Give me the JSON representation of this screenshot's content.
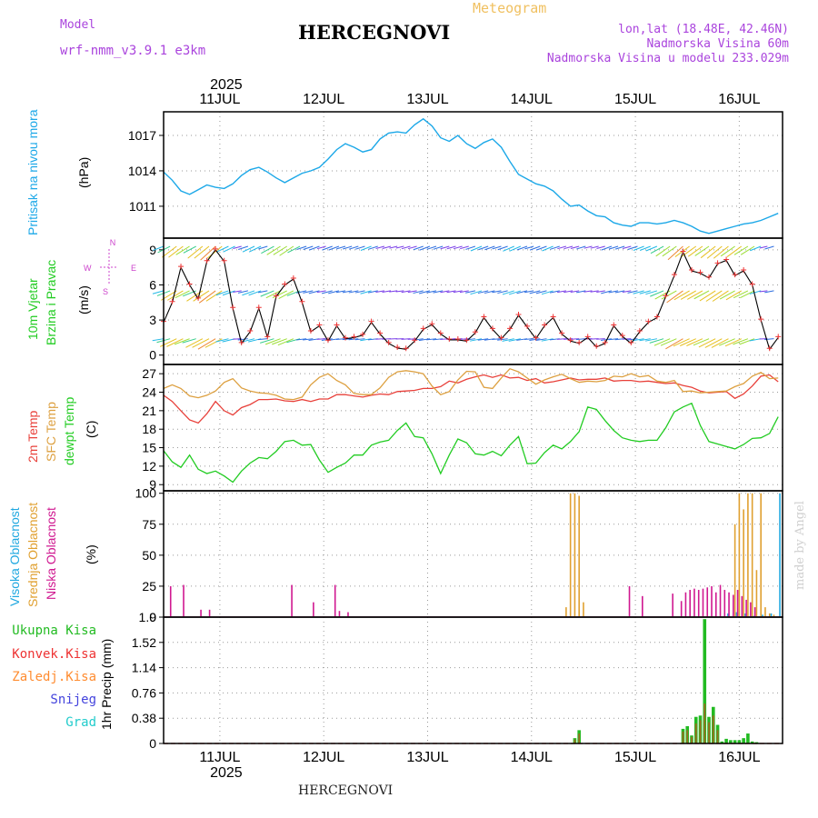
{
  "header": {
    "model_label": "Model",
    "model_name": "wrf-nmm_v3.9.1 e3km",
    "meteogram_label": "Meteogram",
    "station": "HERCEGNOVI",
    "lonlat": "lon,lat (18.48E, 42.46N)",
    "altitude": "Nadmorska Visina 60m",
    "model_altitude": "Nadmorska Visina u modelu 233.029m"
  },
  "footer": {
    "station": "HERCEGNOVI",
    "watermark": "made by Angel"
  },
  "colors": {
    "pressure": "#1ca8e8",
    "temp2m": "#e8403a",
    "sfc": "#dda040",
    "dewpt": "#22cc22",
    "high_cloud": "#20a8e0",
    "mid_cloud": "#e0a030",
    "low_cloud": "#d01890",
    "total_precip": "#22bb22",
    "conv_precip": "#ee3333",
    "strat_precip": "#ff8c30",
    "snow": "#4444dd",
    "hail": "#22cccc",
    "wind_label": "#cc44cc",
    "model": "#aa44dd"
  },
  "time_axis": {
    "year": "2025",
    "day_labels": [
      "11JUL",
      "12JUL",
      "13JUL",
      "14JUL",
      "15JUL",
      "16JUL"
    ]
  },
  "chart_data": [
    {
      "type": "line",
      "panel": "pressure",
      "ylabel_left": "Pritisak na nivou mora",
      "ylabel_unit": "(hPa)",
      "ylim": [
        1008.3,
        1019.0
      ],
      "yticks": [
        "1017",
        "1014",
        "1011"
      ],
      "ytick_values": [
        1017,
        1014,
        1011
      ],
      "x_hours": [
        0,
        2,
        4,
        6,
        8,
        10,
        12,
        14,
        16,
        18,
        20,
        22,
        24,
        26,
        28,
        30,
        32,
        34,
        36,
        38,
        40,
        42,
        44,
        46,
        48,
        50,
        52,
        54,
        56,
        58,
        60,
        62,
        64,
        66,
        68,
        70,
        72,
        74,
        76,
        78,
        80,
        82,
        84,
        86,
        88,
        90,
        92,
        94,
        96,
        98,
        100,
        102,
        104,
        106,
        108,
        110,
        112,
        114,
        116,
        118,
        120,
        122,
        124,
        126,
        128,
        130,
        132,
        134,
        136,
        138,
        140,
        142
      ],
      "values": [
        1013.9,
        1013.2,
        1012.3,
        1012.0,
        1012.4,
        1012.8,
        1012.6,
        1012.5,
        1012.9,
        1013.6,
        1014.1,
        1014.3,
        1013.9,
        1013.4,
        1013.0,
        1013.4,
        1013.8,
        1014.0,
        1014.3,
        1015.0,
        1015.8,
        1016.3,
        1016.0,
        1015.6,
        1015.8,
        1016.7,
        1017.2,
        1017.3,
        1017.2,
        1017.9,
        1018.4,
        1017.8,
        1016.8,
        1016.5,
        1017.0,
        1016.3,
        1015.9,
        1016.4,
        1016.7,
        1016.0,
        1014.8,
        1013.7,
        1013.3,
        1012.9,
        1012.7,
        1012.3,
        1011.6,
        1011.0,
        1011.1,
        1010.6,
        1010.2,
        1010.1,
        1009.6,
        1009.4,
        1009.3,
        1009.6,
        1009.6,
        1009.5,
        1009.6,
        1009.8,
        1009.6,
        1009.3,
        1008.9,
        1008.7,
        1008.9,
        1009.1,
        1009.3,
        1009.5,
        1009.6,
        1009.8,
        1010.1,
        1010.4
      ]
    },
    {
      "type": "line",
      "panel": "wind",
      "ylabel_left": "10m Vjetar",
      "ylabel_left2": "Brzina i Pravac",
      "ylabel_unit": "(m/s)",
      "compass": {
        "n": "N",
        "s": "S",
        "e": "E",
        "w": "W"
      },
      "ylim": [
        -0.8,
        10.0
      ],
      "yticks": [
        "9",
        "6",
        "3",
        "0"
      ],
      "ytick_values": [
        9,
        6,
        3,
        0
      ],
      "x_hours": [
        0,
        2,
        4,
        6,
        8,
        10,
        12,
        14,
        16,
        18,
        20,
        22,
        24,
        26,
        28,
        30,
        32,
        34,
        36,
        38,
        40,
        42,
        44,
        46,
        48,
        50,
        52,
        54,
        56,
        58,
        60,
        62,
        64,
        66,
        68,
        70,
        72,
        74,
        76,
        78,
        80,
        82,
        84,
        86,
        88,
        90,
        92,
        94,
        96,
        98,
        100,
        102,
        104,
        106,
        108,
        110,
        112,
        114,
        116,
        118,
        120,
        122,
        124,
        126,
        128,
        130,
        132,
        134,
        136,
        138,
        140,
        142
      ],
      "values": [
        2.8,
        4.5,
        7.5,
        6.0,
        4.8,
        8.0,
        9.0,
        8.0,
        4.0,
        1.0,
        2.0,
        4.0,
        1.5,
        5.0,
        6.0,
        6.5,
        4.5,
        2.0,
        2.5,
        1.2,
        2.5,
        1.4,
        1.5,
        1.7,
        2.8,
        1.8,
        1.0,
        0.6,
        0.5,
        1.2,
        2.2,
        2.6,
        1.8,
        1.3,
        1.3,
        1.2,
        1.9,
        3.2,
        2.2,
        1.4,
        2.2,
        3.4,
        2.4,
        1.4,
        2.5,
        3.2,
        1.8,
        1.2,
        1.0,
        1.5,
        0.7,
        1.0,
        2.5,
        1.6,
        1.0,
        2.0,
        2.8,
        3.2,
        5.0,
        6.8,
        8.8,
        7.2,
        7.0,
        6.6,
        7.8,
        8.1,
        6.8,
        7.2,
        6.0,
        3.0,
        0.5,
        1.5
      ]
    },
    {
      "type": "line",
      "panel": "temperature",
      "ylabel_left": "2m Temp",
      "ylabel_left2": "SFC Temp",
      "ylabel_left3": "dewpt Temp",
      "ylabel_unit": "(C)",
      "ylim": [
        8.0,
        28.5
      ],
      "yticks": [
        "27",
        "24",
        "21",
        "18",
        "15",
        "12",
        "9"
      ],
      "ytick_values": [
        27,
        24,
        21,
        18,
        15,
        12,
        9
      ],
      "x_hours": [
        0,
        2,
        4,
        6,
        8,
        10,
        12,
        14,
        16,
        18,
        20,
        22,
        24,
        26,
        28,
        30,
        32,
        34,
        36,
        38,
        40,
        42,
        44,
        46,
        48,
        50,
        52,
        54,
        56,
        58,
        60,
        62,
        64,
        66,
        68,
        70,
        72,
        74,
        76,
        78,
        80,
        82,
        84,
        86,
        88,
        90,
        92,
        94,
        96,
        98,
        100,
        102,
        104,
        106,
        108,
        110,
        112,
        114,
        116,
        118,
        120,
        122,
        124,
        126,
        128,
        130,
        132,
        134,
        136,
        138,
        140,
        142
      ],
      "series": [
        {
          "name": "2m Temp",
          "values": [
            23.5,
            22.5,
            21.0,
            19.5,
            19.0,
            20.5,
            22.5,
            21.0,
            20.3,
            21.5,
            22.0,
            22.8,
            22.8,
            22.9,
            22.6,
            22.5,
            22.8,
            22.5,
            22.9,
            22.9,
            23.6,
            23.6,
            23.4,
            23.2,
            23.5,
            23.7,
            23.6,
            24.1,
            24.2,
            24.3,
            24.6,
            24.6,
            24.9,
            25.8,
            25.5,
            26.1,
            26.5,
            26.8,
            26.4,
            26.8,
            26.3,
            26.4,
            25.9,
            26.2,
            25.5,
            25.7,
            26.0,
            26.3,
            26.0,
            26.1,
            26.1,
            26.3,
            25.8,
            25.9,
            25.9,
            25.7,
            25.8,
            25.6,
            25.4,
            25.5,
            25.1,
            24.8,
            24.2,
            23.9,
            24.0,
            24.1,
            23.0,
            23.7,
            25.0,
            26.6,
            26.8,
            25.7
          ]
        },
        {
          "name": "SFC Temp",
          "values": [
            24.6,
            25.2,
            24.6,
            23.4,
            23.1,
            23.5,
            24.2,
            25.6,
            26.2,
            24.7,
            24.2,
            23.9,
            23.8,
            23.5,
            22.9,
            22.8,
            23.2,
            25.2,
            26.4,
            27.0,
            25.9,
            25.2,
            23.8,
            23.6,
            23.6,
            24.7,
            26.4,
            27.3,
            27.5,
            27.3,
            27.0,
            25.0,
            23.6,
            24.1,
            26.0,
            27.4,
            27.3,
            24.8,
            24.6,
            26.3,
            27.8,
            27.3,
            26.3,
            25.3,
            26.0,
            26.5,
            26.9,
            26.2,
            25.6,
            25.8,
            25.7,
            25.9,
            26.6,
            26.5,
            27.0,
            26.5,
            26.7,
            25.8,
            25.6,
            25.9,
            24.1,
            24.2,
            23.9,
            24.0,
            24.1,
            24.2,
            24.9,
            25.4,
            26.6,
            27.2,
            26.2,
            26.3
          ]
        },
        {
          "name": "dewpt Temp",
          "values": [
            14.5,
            12.7,
            11.8,
            13.8,
            11.5,
            10.8,
            11.2,
            10.4,
            9.4,
            11.2,
            12.5,
            13.4,
            13.2,
            14.4,
            16.0,
            16.2,
            15.4,
            15.5,
            13.0,
            11.0,
            11.8,
            12.5,
            13.8,
            13.8,
            15.4,
            15.9,
            16.2,
            17.8,
            19.0,
            16.8,
            16.6,
            14.0,
            10.8,
            13.8,
            16.4,
            15.8,
            14.0,
            13.8,
            14.4,
            13.7,
            15.4,
            16.8,
            12.4,
            12.5,
            14.2,
            15.4,
            14.8,
            16.0,
            17.6,
            21.6,
            21.2,
            19.4,
            17.8,
            16.6,
            16.2,
            16.0,
            16.2,
            16.2,
            18.2,
            20.8,
            21.6,
            22.2,
            18.6,
            16.0,
            15.6,
            15.2,
            14.8,
            15.5,
            16.5,
            16.6,
            17.3,
            20.0
          ]
        }
      ]
    },
    {
      "type": "bar",
      "panel": "cloud",
      "ylabel_left": "Visoka Oblacnost",
      "ylabel_left2": "Srednja Oblacnost",
      "ylabel_left3": "Niska Oblacnost",
      "ylabel_unit": "(%)",
      "ylim": [
        0,
        102
      ],
      "yticks": [
        "100",
        "75",
        "50",
        "25",
        "0"
      ],
      "ytick_values": [
        100,
        75,
        50,
        25,
        0
      ],
      "series": [
        {
          "name": "Visoka Oblacnost",
          "x_hours": [
            130,
            132,
            134,
            136,
            138,
            140,
            142
          ],
          "values": [
            3,
            4,
            3,
            1,
            2,
            3,
            100
          ]
        },
        {
          "name": "Srednja Oblacnost",
          "x_hours": [
            93,
            94,
            95,
            96,
            97,
            132,
            133,
            134,
            135,
            136,
            137,
            138,
            139,
            140,
            141
          ],
          "values": [
            8,
            100,
            100,
            98,
            12,
            75,
            100,
            87,
            100,
            100,
            38,
            100,
            8,
            3,
            2
          ]
        },
        {
          "name": "Niska Oblacnost",
          "x_hours": [
            2,
            5,
            9,
            11,
            30,
            35,
            40,
            41,
            43,
            108,
            111,
            118,
            120,
            121,
            122,
            123,
            124,
            125,
            126,
            127,
            128,
            129,
            130,
            131,
            132,
            133,
            134,
            135,
            136,
            137
          ],
          "values": [
            25,
            26,
            6,
            6,
            26,
            12,
            26,
            5,
            4,
            25,
            17,
            19,
            13,
            20,
            22,
            23,
            22,
            23,
            24,
            25,
            20,
            26,
            22,
            20,
            18,
            22,
            17,
            14,
            12,
            8
          ]
        }
      ]
    },
    {
      "type": "bar",
      "panel": "precipitation",
      "legend": [
        "Ukupna Kisa",
        "Konvek.Kisa",
        "Zaledj.Kisa",
        "Snijeg",
        "Grad"
      ],
      "ylabel_unit": "1hr Precip (mm)",
      "ylim": [
        0,
        1.9
      ],
      "yticks": [
        "1.9",
        "1.52",
        "1.14",
        "0.76",
        "0.38",
        "0"
      ],
      "ytick_values": [
        1.9,
        1.52,
        1.14,
        0.76,
        0.38,
        0
      ],
      "series": [
        {
          "name": "Ukupna Kisa",
          "x_hours": [
            95,
            96,
            120,
            121,
            122,
            123,
            124,
            125,
            126,
            127,
            128,
            129,
            130,
            131,
            132,
            133,
            134,
            135,
            136,
            137
          ],
          "values": [
            0.08,
            0.2,
            0.22,
            0.26,
            0.12,
            0.4,
            0.42,
            1.87,
            0.4,
            0.55,
            0.28,
            0.03,
            0.07,
            0.05,
            0.05,
            0.05,
            0.08,
            0.15,
            0.03,
            0.02
          ]
        },
        {
          "name": "Konvek.Kisa",
          "x_hours": [
            95,
            96,
            120,
            121,
            122,
            123,
            124,
            125,
            126,
            127,
            128
          ],
          "values": [
            0.06,
            0.15,
            0.18,
            0.2,
            0.1,
            0.3,
            0.35,
            0.6,
            0.32,
            0.42,
            0.2
          ]
        }
      ]
    }
  ]
}
